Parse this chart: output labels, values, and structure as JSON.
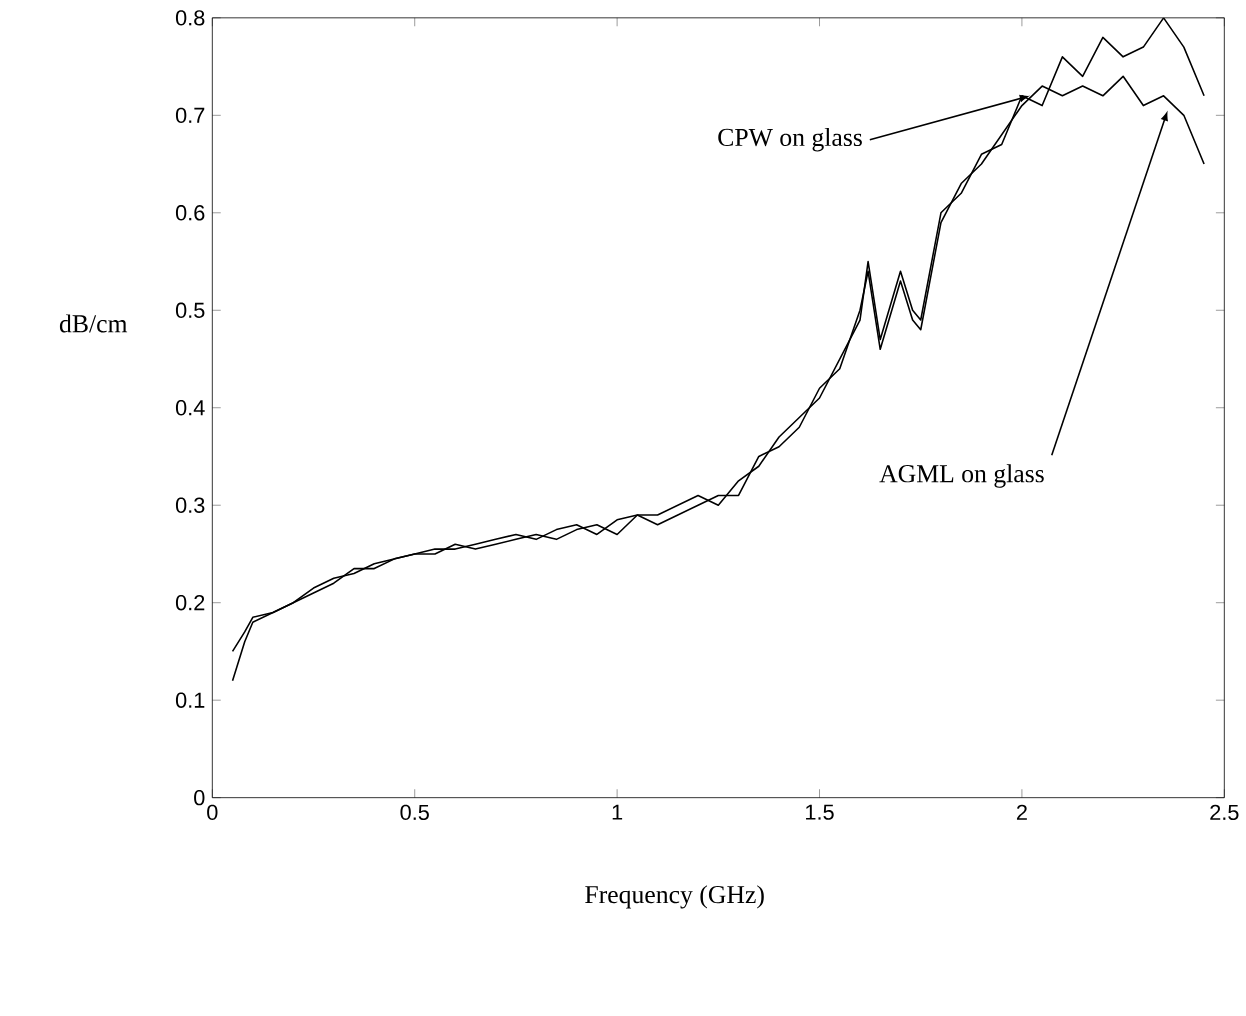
{
  "chart_data": {
    "type": "line",
    "xlabel": "Frequency (GHz)",
    "ylabel": "dB/cm",
    "xlim": [
      0,
      2.5
    ],
    "ylim": [
      0,
      0.8
    ],
    "xticks": [
      0,
      0.5,
      1,
      1.5,
      2,
      2.5
    ],
    "yticks": [
      0,
      0.1,
      0.2,
      0.3,
      0.4,
      0.5,
      0.6,
      0.7,
      0.8
    ],
    "grid": false,
    "legend": false,
    "annotations": [
      {
        "text": "CPW on glass",
        "x": 2.02,
        "y": 0.72
      },
      {
        "text": "AGML on glass",
        "x": 2.36,
        "y": 0.705
      }
    ],
    "x": [
      0.05,
      0.08,
      0.1,
      0.15,
      0.2,
      0.25,
      0.3,
      0.35,
      0.4,
      0.45,
      0.5,
      0.55,
      0.6,
      0.65,
      0.7,
      0.75,
      0.8,
      0.85,
      0.9,
      0.95,
      1.0,
      1.05,
      1.1,
      1.15,
      1.2,
      1.25,
      1.3,
      1.35,
      1.4,
      1.45,
      1.5,
      1.55,
      1.6,
      1.62,
      1.65,
      1.7,
      1.73,
      1.75,
      1.8,
      1.85,
      1.9,
      1.95,
      2.0,
      2.05,
      2.1,
      2.15,
      2.2,
      2.25,
      2.3,
      2.35,
      2.4,
      2.45
    ],
    "series": [
      {
        "color": "#000000",
        "values": [
          0.15,
          0.17,
          0.185,
          0.19,
          0.2,
          0.215,
          0.225,
          0.23,
          0.24,
          0.245,
          0.25,
          0.255,
          0.255,
          0.26,
          0.265,
          0.27,
          0.265,
          0.275,
          0.28,
          0.27,
          0.285,
          0.29,
          0.29,
          0.3,
          0.31,
          0.3,
          0.325,
          0.34,
          0.37,
          0.39,
          0.41,
          0.45,
          0.49,
          0.55,
          0.47,
          0.54,
          0.5,
          0.49,
          0.6,
          0.62,
          0.66,
          0.67,
          0.72,
          0.71,
          0.76,
          0.74,
          0.78,
          0.76,
          0.77,
          0.8,
          0.77,
          0.72
        ]
      },
      {
        "color": "#000000",
        "values": [
          0.12,
          0.16,
          0.18,
          0.19,
          0.2,
          0.21,
          0.22,
          0.235,
          0.235,
          0.245,
          0.25,
          0.25,
          0.26,
          0.255,
          0.26,
          0.265,
          0.27,
          0.265,
          0.275,
          0.28,
          0.27,
          0.29,
          0.28,
          0.29,
          0.3,
          0.31,
          0.31,
          0.35,
          0.36,
          0.38,
          0.42,
          0.44,
          0.5,
          0.54,
          0.46,
          0.53,
          0.49,
          0.48,
          0.59,
          0.63,
          0.65,
          0.68,
          0.71,
          0.73,
          0.72,
          0.73,
          0.72,
          0.74,
          0.71,
          0.72,
          0.7,
          0.65
        ]
      }
    ]
  }
}
